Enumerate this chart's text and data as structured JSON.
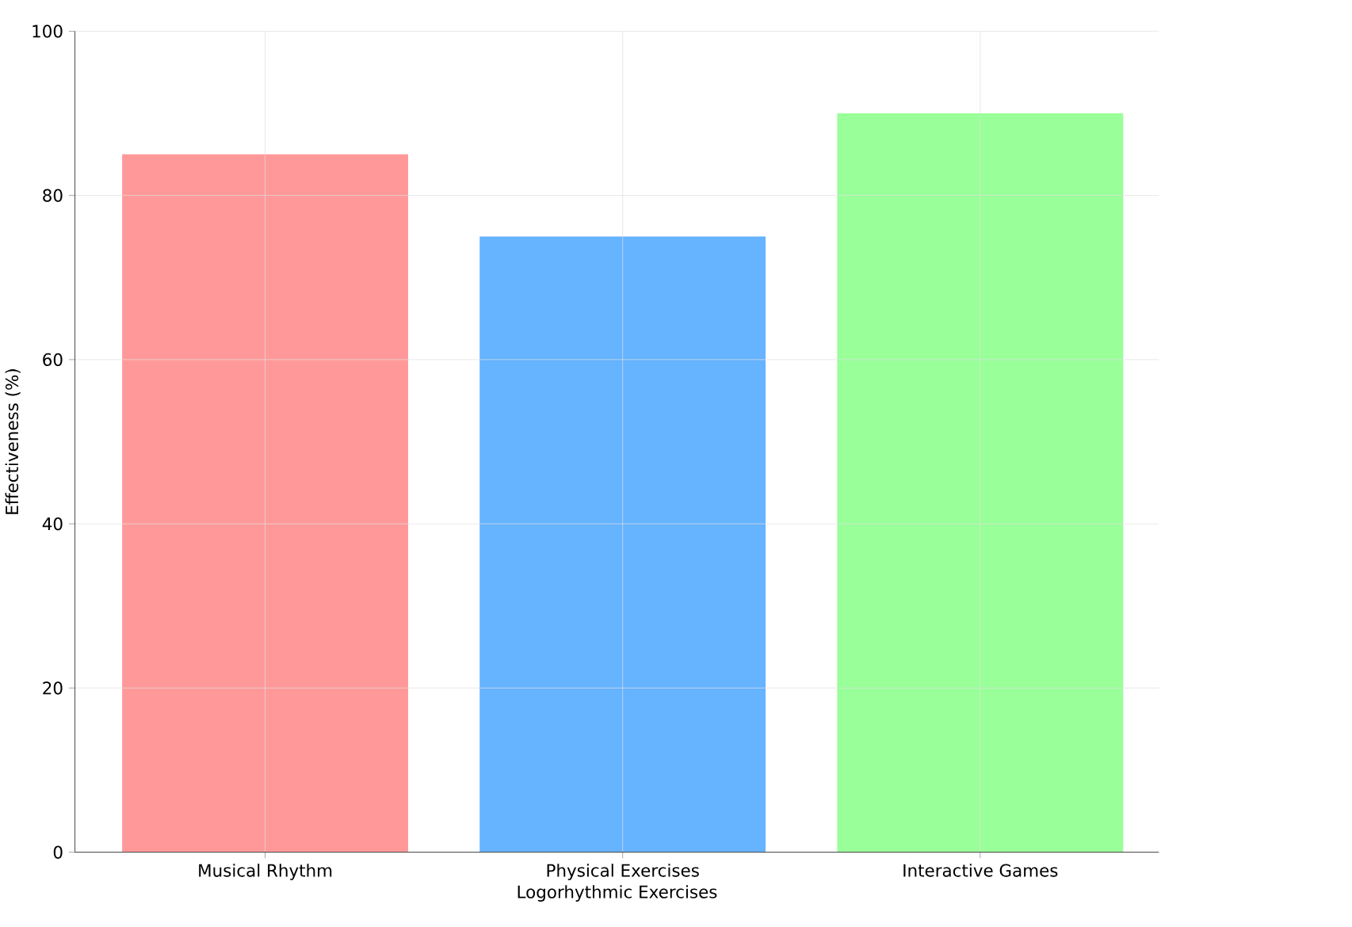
{
  "chart_data": {
    "type": "bar",
    "categories": [
      "Musical Rhythm",
      "Physical Exercises",
      "Interactive Games"
    ],
    "values": [
      85,
      75,
      90
    ],
    "colors": [
      "#ff9999",
      "#66b3ff",
      "#99ff99"
    ],
    "xlabel": "Logorhythmic Exercises",
    "ylabel": "Effectiveness (%)",
    "ylim": [
      0,
      100
    ],
    "yticks": [
      0,
      20,
      40,
      60,
      80,
      100
    ],
    "grid": true
  }
}
